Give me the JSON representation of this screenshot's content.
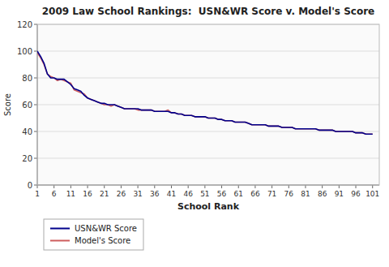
{
  "chart_data": {
    "type": "line",
    "title": "2009 Law School Rankings:  USN&WR Score v. Model's Score",
    "xlabel": "School Rank",
    "ylabel": "Score",
    "x": [
      1,
      2,
      3,
      4,
      5,
      6,
      7,
      8,
      9,
      10,
      11,
      12,
      13,
      14,
      15,
      16,
      17,
      18,
      19,
      20,
      21,
      22,
      23,
      24,
      25,
      26,
      27,
      28,
      29,
      30,
      31,
      32,
      33,
      34,
      35,
      36,
      37,
      38,
      39,
      40,
      41,
      42,
      43,
      44,
      45,
      46,
      47,
      48,
      49,
      50,
      51,
      52,
      53,
      54,
      55,
      56,
      57,
      58,
      59,
      60,
      61,
      62,
      63,
      64,
      65,
      66,
      67,
      68,
      69,
      70,
      71,
      72,
      73,
      74,
      75,
      76,
      77,
      78,
      79,
      80,
      81,
      82,
      83,
      84,
      85,
      86,
      87,
      88,
      89,
      90,
      91,
      92,
      93,
      94,
      95,
      96,
      97,
      98,
      99,
      100,
      101
    ],
    "series": [
      {
        "name": "USN&WR Score",
        "color": "#00008B",
        "values": [
          100,
          96,
          91,
          83,
          80,
          80,
          79,
          79,
          79,
          77,
          75,
          72,
          71,
          70,
          67,
          65,
          64,
          63,
          62,
          61,
          61,
          60,
          60,
          60,
          59,
          58,
          57,
          57,
          57,
          57,
          57,
          56,
          56,
          56,
          56,
          55,
          55,
          55,
          55,
          55,
          54,
          54,
          53,
          53,
          52,
          52,
          52,
          51,
          51,
          51,
          51,
          50,
          50,
          50,
          49,
          49,
          48,
          48,
          48,
          47,
          47,
          47,
          47,
          46,
          45,
          45,
          45,
          45,
          45,
          44,
          44,
          44,
          44,
          43,
          43,
          43,
          43,
          42,
          42,
          42,
          42,
          42,
          42,
          42,
          41,
          41,
          41,
          41,
          41,
          40,
          40,
          40,
          40,
          40,
          40,
          39,
          39,
          39,
          38,
          38,
          38
        ]
      },
      {
        "name": "Model's Score",
        "color": "#cd5c5c",
        "values": [
          99,
          95,
          90,
          83,
          81,
          80,
          78,
          79,
          78,
          77,
          76,
          71,
          70,
          69,
          68,
          65,
          64,
          63,
          62,
          61,
          60,
          60,
          59,
          60,
          59,
          58,
          57,
          57,
          57,
          57,
          56,
          56,
          56,
          56,
          56,
          55,
          55,
          55,
          55,
          56,
          54,
          54,
          53,
          53,
          52,
          52,
          52,
          51,
          51,
          51,
          51,
          50,
          50,
          50,
          49,
          49,
          48,
          48,
          48,
          47,
          47,
          47,
          47,
          46,
          45,
          45,
          45,
          45,
          45,
          44,
          44,
          44,
          44,
          43,
          43,
          43,
          43,
          42,
          42,
          42,
          42,
          42,
          42,
          42,
          41,
          41,
          41,
          41,
          41,
          40,
          40,
          40,
          40,
          40,
          40,
          39,
          39,
          39,
          38,
          38,
          38
        ]
      }
    ],
    "xlim": [
      1,
      103
    ],
    "ylim": [
      0,
      120
    ],
    "xticks": [
      1,
      6,
      11,
      16,
      21,
      26,
      31,
      36,
      41,
      46,
      51,
      56,
      61,
      66,
      71,
      76,
      81,
      86,
      91,
      96,
      101
    ],
    "yticks": [
      0,
      20,
      40,
      60,
      80,
      100,
      120
    ],
    "grid": true,
    "legend": "bottom"
  }
}
